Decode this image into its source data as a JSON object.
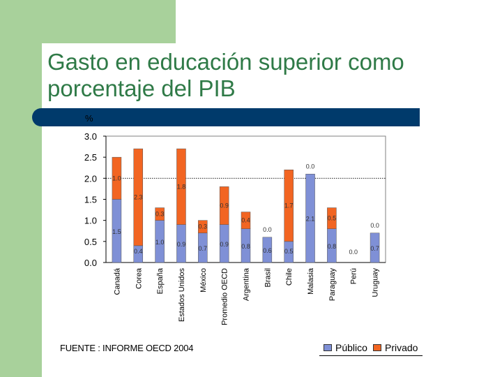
{
  "slide": {
    "title": "Gasto en educación superior como porcentaje del PIB",
    "source": "FUENTE : INFORME OECD 2004"
  },
  "colors": {
    "green": "#a8d19b",
    "title": "#2f7a47",
    "bar": "#003a6b",
    "publico": "#7f90d6",
    "privado": "#f26522"
  },
  "chart_data": {
    "type": "bar",
    "stacked": true,
    "ylabel": "%",
    "ylim": [
      0,
      3
    ],
    "yticks": [
      "3.0",
      "2.5",
      "2.0",
      "1.5",
      "1.0",
      "0.5",
      "0.0"
    ],
    "reference_line": 2.0,
    "categories": [
      "Canadá",
      "Corea",
      "España",
      "Estados Unidos",
      "México",
      "Promedio OECD",
      "Argentina",
      "Brasil",
      "Chile",
      "Malasia",
      "Paraguay",
      "Perú",
      "Uruguay"
    ],
    "series": [
      {
        "name": "Público",
        "values": [
          1.5,
          0.4,
          1.0,
          0.9,
          0.7,
          0.9,
          0.8,
          0.6,
          0.5,
          2.1,
          0.8,
          0.0,
          0.7
        ]
      },
      {
        "name": "Privado",
        "values": [
          1.0,
          2.3,
          0.3,
          1.8,
          0.3,
          0.9,
          0.4,
          0.0,
          1.7,
          0.0,
          0.5,
          0.0,
          0.0
        ]
      }
    ],
    "labels": {
      "Público": [
        "1.5",
        "0.4",
        "1.0",
        "0.9",
        "0.7",
        "0.9",
        "0.8",
        "0.6",
        "0.5",
        "2.1",
        "0.8",
        "0.0",
        "0.7"
      ],
      "Privado": [
        "1.0",
        "2.3",
        "0.3",
        "1.8",
        "0.3",
        "0.9",
        "0.4",
        "0.0",
        "1.7",
        "0.0",
        "0.5",
        "",
        "0.0"
      ]
    },
    "legend": [
      "Público",
      "Privado"
    ],
    "legend_position": "bottom-right"
  }
}
